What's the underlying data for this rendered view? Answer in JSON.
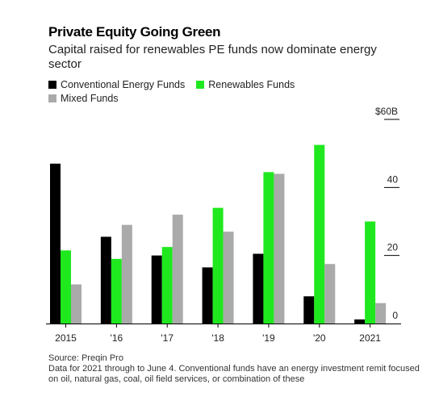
{
  "title": "Private Equity Going Green",
  "subtitle": "Capital raised for renewables PE funds now dominate energy sector",
  "legend": [
    {
      "name": "Conventional Energy Funds",
      "color": "#000000"
    },
    {
      "name": "Renewables Funds",
      "color": "#1fe81f"
    },
    {
      "name": "Mixed Funds",
      "color": "#aaaaaa"
    }
  ],
  "footer": {
    "source": "Source: Preqin Pro",
    "note": "Data for 2021 through to June 4. Conventional funds have an energy investment remit focused on oil, natural gas, coal, oil field services, or combination of these"
  },
  "chart_data": {
    "type": "bar",
    "categories": [
      "2015",
      "'16",
      "'17",
      "'18",
      "'19",
      "'20",
      "2021"
    ],
    "series": [
      {
        "name": "Conventional Energy Funds",
        "color": "#000000",
        "values": [
          47,
          25.5,
          20,
          16.5,
          20.5,
          8,
          1.2
        ]
      },
      {
        "name": "Renewables Funds",
        "color": "#1fe81f",
        "values": [
          21.5,
          19,
          22.5,
          34,
          44.5,
          52.5,
          30
        ]
      },
      {
        "name": "Mixed Funds",
        "color": "#aaaaaa",
        "values": [
          11.5,
          29,
          32,
          27,
          44,
          17.5,
          6
        ]
      }
    ],
    "yticks": [
      {
        "value": 60,
        "label": "$60B"
      },
      {
        "value": 40,
        "label": "40"
      },
      {
        "value": 20,
        "label": "20"
      },
      {
        "value": 0,
        "label": "0"
      }
    ],
    "ylim": [
      0,
      60
    ],
    "grid": false,
    "legend_position": "top-left"
  }
}
